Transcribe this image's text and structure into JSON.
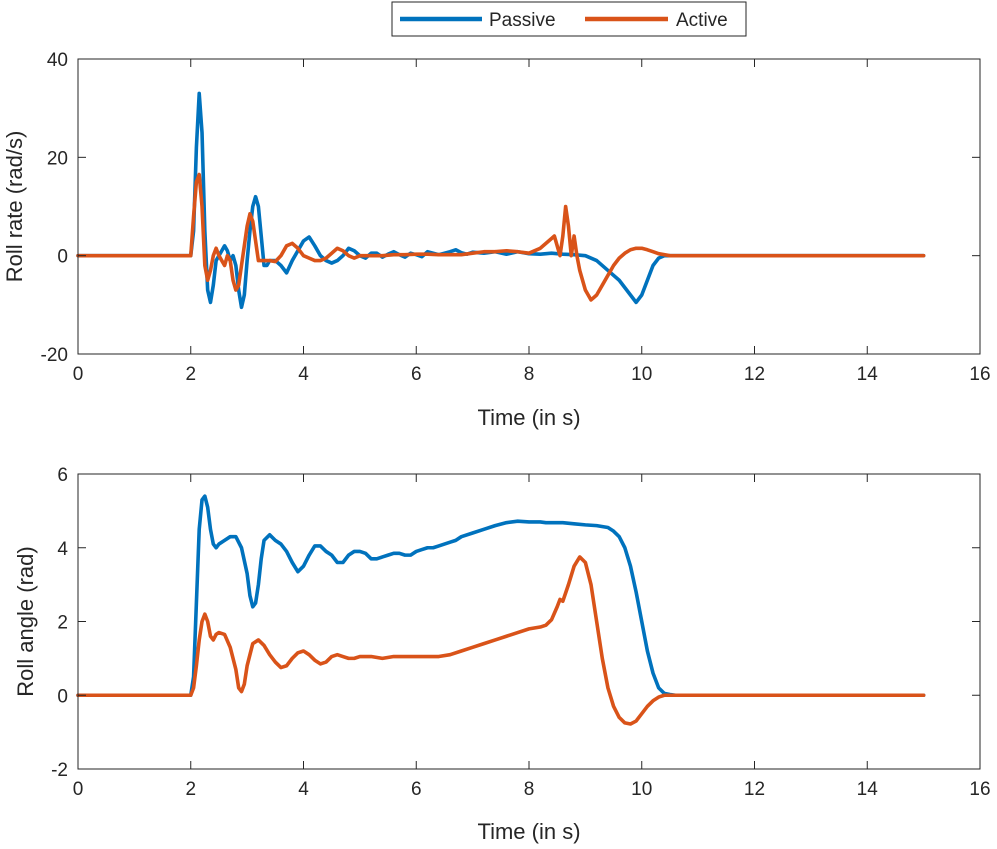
{
  "legend": {
    "entries": [
      {
        "name": "Passive",
        "color": "#0072BD"
      },
      {
        "name": "Active",
        "color": "#D95319"
      }
    ],
    "placement": "top-center, outside axes"
  },
  "chart_data": [
    {
      "type": "line",
      "id": "roll-rate",
      "title": "",
      "xlabel": "Time (in s)",
      "ylabel": "Roll rate (rad/s)",
      "xlim": [
        0,
        16
      ],
      "ylim": [
        -20,
        40
      ],
      "xticks": [
        0,
        2,
        4,
        6,
        8,
        10,
        12,
        14,
        16
      ],
      "yticks": [
        -20,
        0,
        20,
        40
      ],
      "grid": false,
      "series": [
        {
          "name": "Passive",
          "color": "#0072BD",
          "x": [
            0,
            2.0,
            2.05,
            2.1,
            2.15,
            2.2,
            2.25,
            2.3,
            2.35,
            2.4,
            2.45,
            2.5,
            2.55,
            2.6,
            2.65,
            2.7,
            2.75,
            2.8,
            2.85,
            2.9,
            2.95,
            3.0,
            3.05,
            3.1,
            3.15,
            3.2,
            3.25,
            3.3,
            3.35,
            3.4,
            3.5,
            3.6,
            3.7,
            3.8,
            3.9,
            4.0,
            4.1,
            4.2,
            4.3,
            4.4,
            4.5,
            4.6,
            4.7,
            4.8,
            4.9,
            5.0,
            5.1,
            5.2,
            5.3,
            5.4,
            5.5,
            5.6,
            5.7,
            5.8,
            5.9,
            6.0,
            6.1,
            6.2,
            6.3,
            6.4,
            6.5,
            6.6,
            6.7,
            6.8,
            6.9,
            7.0,
            7.2,
            7.4,
            7.6,
            7.8,
            8.0,
            8.2,
            8.4,
            8.6,
            8.8,
            9.0,
            9.2,
            9.4,
            9.6,
            9.8,
            9.9,
            10.0,
            10.1,
            10.2,
            10.3,
            10.4,
            10.5,
            10.6,
            10.8,
            11.0,
            12.0,
            13.0,
            14.0,
            15.0
          ],
          "y": [
            0,
            0,
            5,
            22,
            33,
            25,
            5,
            -7,
            -9.5,
            -6,
            -1,
            0,
            1,
            2,
            1,
            -1,
            0,
            -2,
            -7,
            -10.5,
            -8,
            -1,
            5,
            10,
            12,
            10,
            4,
            -2,
            -2,
            -1,
            -1,
            -2,
            -3.5,
            -1,
            1,
            3,
            3.8,
            2,
            0,
            -1,
            -1.5,
            -1,
            0,
            1.5,
            1,
            0,
            -0.5,
            0.5,
            0.5,
            -0.3,
            0.3,
            0.8,
            0.2,
            -0.3,
            0.5,
            0.2,
            -0.2,
            0.8,
            0.5,
            0.2,
            0.5,
            0.8,
            1.2,
            0.6,
            0.3,
            0.7,
            0.5,
            0.8,
            0.3,
            0.8,
            0.4,
            0.3,
            0.5,
            0.3,
            0.2,
            0,
            -1,
            -3,
            -5,
            -8,
            -9.5,
            -8,
            -5,
            -2,
            -0.5,
            0,
            0,
            0,
            0,
            0,
            0,
            0,
            0,
            0
          ]
        },
        {
          "name": "Active",
          "color": "#D95319",
          "x": [
            0,
            2.0,
            2.05,
            2.1,
            2.15,
            2.2,
            2.25,
            2.3,
            2.35,
            2.4,
            2.45,
            2.5,
            2.55,
            2.6,
            2.65,
            2.7,
            2.75,
            2.8,
            2.85,
            2.9,
            2.95,
            3.0,
            3.05,
            3.1,
            3.15,
            3.2,
            3.3,
            3.4,
            3.5,
            3.6,
            3.7,
            3.8,
            3.9,
            4.0,
            4.1,
            4.2,
            4.3,
            4.4,
            4.5,
            4.6,
            4.7,
            4.8,
            4.9,
            5.0,
            5.2,
            5.4,
            5.6,
            5.8,
            6.0,
            6.2,
            6.4,
            6.6,
            6.8,
            7.0,
            7.2,
            7.4,
            7.6,
            7.8,
            8.0,
            8.2,
            8.3,
            8.4,
            8.45,
            8.5,
            8.55,
            8.6,
            8.65,
            8.7,
            8.75,
            8.8,
            8.85,
            8.9,
            8.95,
            9.0,
            9.05,
            9.1,
            9.15,
            9.2,
            9.3,
            9.4,
            9.5,
            9.6,
            9.7,
            9.8,
            9.9,
            10.0,
            10.1,
            10.2,
            10.3,
            10.4,
            10.5,
            10.6,
            10.8,
            11.0,
            12.0,
            13.0,
            14.0,
            15.0
          ],
          "y": [
            0,
            0,
            8,
            15,
            16.5,
            10,
            -2,
            -5,
            -3,
            0,
            1.5,
            0,
            -1,
            -2,
            0,
            -1,
            -5,
            -7,
            -6,
            -2,
            2,
            6,
            8.5,
            7,
            3,
            -1,
            -1,
            -1,
            -1.2,
            0,
            2,
            2.5,
            1.5,
            0,
            -0.5,
            -1,
            -1,
            -0.5,
            0.5,
            1.5,
            1,
            0,
            -0.5,
            0,
            0,
            0,
            0.2,
            0.2,
            0.3,
            0.3,
            0.2,
            0.2,
            0.2,
            0.5,
            0.8,
            0.8,
            1,
            0.8,
            0.5,
            1.5,
            2.5,
            3.5,
            4,
            2,
            0,
            4,
            10,
            6,
            0,
            4,
            0,
            -3,
            -5,
            -7,
            -8,
            -9,
            -8.5,
            -8,
            -6,
            -4,
            -2,
            -0.5,
            0.5,
            1.2,
            1.5,
            1.5,
            1.2,
            0.8,
            0.4,
            0.2,
            0,
            0,
            0,
            0,
            0,
            0,
            0,
            0
          ]
        }
      ]
    },
    {
      "type": "line",
      "id": "roll-angle",
      "title": "",
      "xlabel": "Time (in s)",
      "ylabel": "Roll angle (rad)",
      "xlim": [
        0,
        16
      ],
      "ylim": [
        -2,
        6
      ],
      "xticks": [
        0,
        2,
        4,
        6,
        8,
        10,
        12,
        14,
        16
      ],
      "yticks": [
        -2,
        0,
        2,
        4,
        6
      ],
      "grid": false,
      "series": [
        {
          "name": "Passive",
          "color": "#0072BD",
          "x": [
            0,
            2.0,
            2.05,
            2.1,
            2.15,
            2.2,
            2.25,
            2.3,
            2.35,
            2.4,
            2.45,
            2.5,
            2.6,
            2.7,
            2.8,
            2.9,
            3.0,
            3.05,
            3.1,
            3.15,
            3.2,
            3.25,
            3.3,
            3.4,
            3.5,
            3.6,
            3.7,
            3.8,
            3.9,
            4.0,
            4.1,
            4.2,
            4.3,
            4.4,
            4.5,
            4.6,
            4.7,
            4.8,
            4.9,
            5.0,
            5.1,
            5.2,
            5.3,
            5.4,
            5.5,
            5.6,
            5.7,
            5.8,
            5.9,
            6.0,
            6.1,
            6.2,
            6.3,
            6.4,
            6.5,
            6.6,
            6.7,
            6.8,
            7.0,
            7.2,
            7.4,
            7.6,
            7.8,
            8.0,
            8.2,
            8.3,
            8.4,
            8.6,
            8.8,
            9.0,
            9.2,
            9.4,
            9.5,
            9.6,
            9.7,
            9.8,
            9.9,
            10.0,
            10.1,
            10.2,
            10.3,
            10.4,
            10.5,
            10.6,
            10.8,
            11.0,
            12.0,
            13.0,
            14.0,
            15.0
          ],
          "y": [
            0,
            0,
            0.5,
            2.5,
            4.5,
            5.3,
            5.4,
            5.1,
            4.5,
            4.1,
            4.0,
            4.1,
            4.2,
            4.3,
            4.3,
            4.0,
            3.3,
            2.7,
            2.4,
            2.5,
            3.0,
            3.7,
            4.2,
            4.35,
            4.2,
            4.1,
            3.9,
            3.6,
            3.35,
            3.5,
            3.8,
            4.05,
            4.05,
            3.9,
            3.8,
            3.6,
            3.6,
            3.8,
            3.9,
            3.9,
            3.85,
            3.7,
            3.7,
            3.75,
            3.8,
            3.85,
            3.85,
            3.8,
            3.8,
            3.9,
            3.95,
            4.0,
            4.0,
            4.05,
            4.1,
            4.15,
            4.2,
            4.3,
            4.4,
            4.5,
            4.6,
            4.68,
            4.72,
            4.7,
            4.7,
            4.68,
            4.68,
            4.68,
            4.65,
            4.62,
            4.6,
            4.55,
            4.45,
            4.3,
            4.0,
            3.5,
            2.8,
            2.0,
            1.2,
            0.6,
            0.2,
            0.05,
            0.02,
            0,
            0,
            0,
            0,
            0,
            0,
            0
          ]
        },
        {
          "name": "Active",
          "color": "#D95319",
          "x": [
            0,
            2.0,
            2.05,
            2.1,
            2.15,
            2.2,
            2.25,
            2.3,
            2.35,
            2.4,
            2.45,
            2.5,
            2.6,
            2.7,
            2.8,
            2.85,
            2.9,
            2.95,
            3.0,
            3.1,
            3.2,
            3.3,
            3.4,
            3.5,
            3.6,
            3.7,
            3.8,
            3.9,
            4.0,
            4.1,
            4.2,
            4.3,
            4.4,
            4.5,
            4.6,
            4.7,
            4.8,
            4.9,
            5.0,
            5.2,
            5.4,
            5.6,
            5.8,
            6.0,
            6.2,
            6.4,
            6.6,
            6.8,
            7.0,
            7.2,
            7.4,
            7.6,
            7.8,
            8.0,
            8.2,
            8.3,
            8.4,
            8.5,
            8.55,
            8.6,
            8.7,
            8.8,
            8.9,
            9.0,
            9.1,
            9.2,
            9.3,
            9.4,
            9.5,
            9.6,
            9.7,
            9.8,
            9.9,
            10.0,
            10.1,
            10.2,
            10.3,
            10.4,
            10.6,
            10.8,
            11.0,
            12.0,
            13.0,
            14.0,
            15.0
          ],
          "y": [
            0,
            0,
            0.2,
            0.8,
            1.5,
            2.0,
            2.2,
            2.0,
            1.6,
            1.5,
            1.65,
            1.7,
            1.65,
            1.3,
            0.7,
            0.2,
            0.1,
            0.3,
            0.8,
            1.4,
            1.5,
            1.35,
            1.1,
            0.9,
            0.75,
            0.8,
            1.0,
            1.15,
            1.2,
            1.1,
            0.95,
            0.85,
            0.9,
            1.05,
            1.1,
            1.05,
            1.0,
            1.0,
            1.05,
            1.05,
            1.0,
            1.05,
            1.05,
            1.05,
            1.05,
            1.05,
            1.1,
            1.2,
            1.3,
            1.4,
            1.5,
            1.6,
            1.7,
            1.8,
            1.85,
            1.9,
            2.05,
            2.4,
            2.6,
            2.55,
            3.0,
            3.5,
            3.75,
            3.6,
            3.0,
            2.0,
            1.0,
            0.2,
            -0.3,
            -0.6,
            -0.75,
            -0.78,
            -0.7,
            -0.5,
            -0.3,
            -0.15,
            -0.05,
            0,
            0,
            0,
            0,
            0,
            0,
            0,
            0
          ]
        }
      ]
    }
  ]
}
